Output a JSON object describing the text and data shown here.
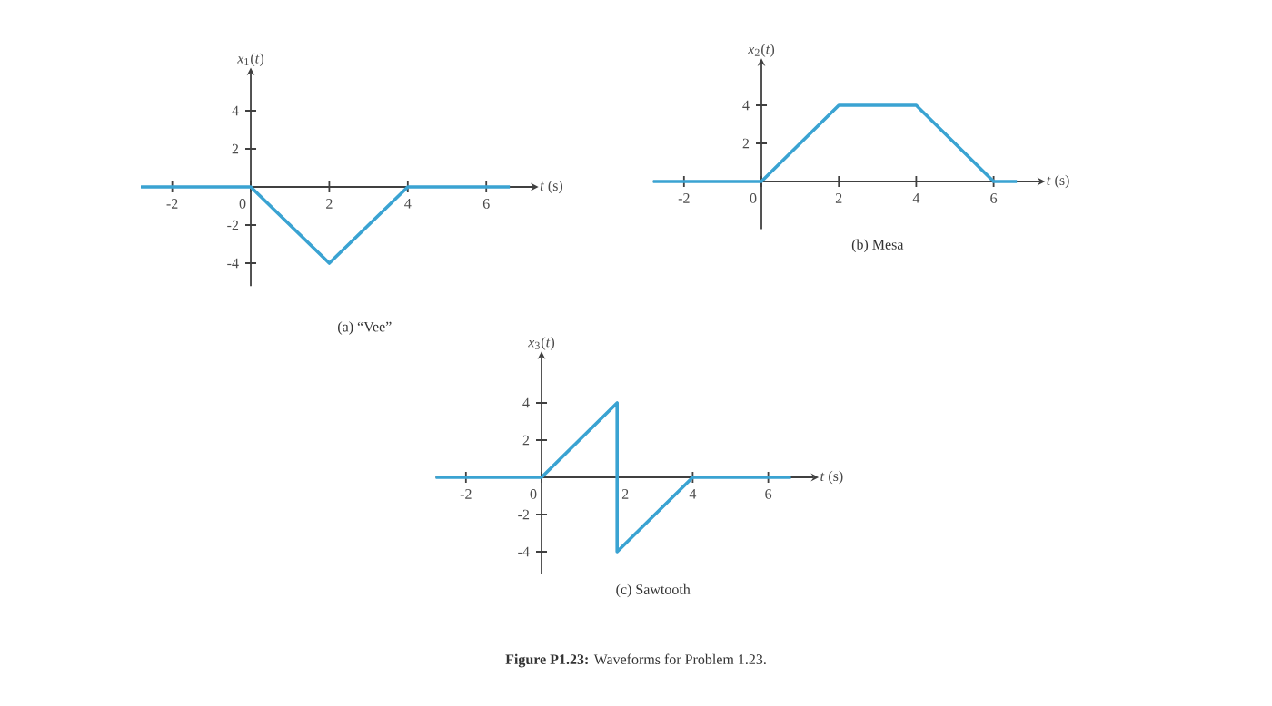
{
  "chart_data": [
    {
      "type": "line",
      "title": "(a) “Vee”",
      "xlabel": "*t* (s)",
      "ylabel": "*x*$_{1}$(*t*)",
      "color": "#3aa3d2",
      "x": [
        -2.8,
        0,
        2,
        4,
        6.6
      ],
      "values": [
        0,
        0,
        -4,
        0,
        0
      ],
      "xlim": [
        -2.8,
        7.2
      ],
      "ylim": [
        -5.2,
        6
      ],
      "xticks": [
        -2,
        0,
        2,
        4,
        6
      ],
      "yticks": [
        -4,
        -2,
        2,
        4
      ],
      "grid": false
    },
    {
      "type": "line",
      "title": "(b) Mesa",
      "xlabel": "*t* (s)",
      "ylabel": "*x*$_{2}$(*t*)",
      "color": "#3aa3d2",
      "x": [
        -2.8,
        0,
        2,
        4,
        6,
        6.6
      ],
      "values": [
        0,
        0,
        4,
        4,
        0,
        0
      ],
      "xlim": [
        -2.8,
        7.2
      ],
      "ylim": [
        -2.5,
        6.2
      ],
      "xticks": [
        -2,
        0,
        2,
        4,
        6
      ],
      "yticks": [
        2,
        4
      ],
      "grid": false
    },
    {
      "type": "line",
      "title": "(c) Sawtooth",
      "xlabel": "*t* (s)",
      "ylabel": "*x*$_{3}$(*t*)",
      "color": "#3aa3d2",
      "x": [
        -2.8,
        0,
        2,
        2,
        4,
        6.6
      ],
      "values": [
        0,
        0,
        4,
        -4,
        0,
        0
      ],
      "xlim": [
        -2.8,
        7.2
      ],
      "ylim": [
        -5.2,
        6.5
      ],
      "xticks": [
        -2,
        0,
        2,
        4,
        6
      ],
      "yticks": [
        -4,
        -2,
        2,
        4
      ],
      "grid": false,
      "annotations": [
        "**Figure P1.23:** Waveforms for Problem 1.23."
      ]
    }
  ]
}
